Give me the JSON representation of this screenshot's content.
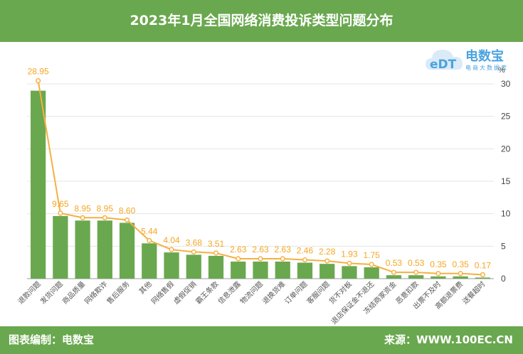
{
  "header": {
    "title": "2023年1月全国网络消费投诉类型问题分布"
  },
  "footer": {
    "left_label": "图表编制：电数宝",
    "right_label": "来源：WWW.100EC.CN"
  },
  "logo": {
    "name": "电数宝",
    "sub": "电商大数据库",
    "mark": "eDT"
  },
  "colors": {
    "brand_green": "#6aa84f",
    "bar": "#6aa84f",
    "line": "#f5b041",
    "label": "#f5a623",
    "logo_blue": "#4aa3df"
  },
  "chart_data": {
    "type": "bar",
    "unit": "%",
    "categories": [
      "退款问题",
      "发货问题",
      "商品质量",
      "网络欺诈",
      "售后服务",
      "其他",
      "网络售假",
      "虚假促销",
      "霸王条款",
      "信息泄露",
      "物流问题",
      "退换货难",
      "订单问题",
      "客服问题",
      "货不对板",
      "退店保证金不退还",
      "冻结商家资金",
      "恶意扣款",
      "出票不及时",
      "高额退票费",
      "送餐超时"
    ],
    "values": [
      28.95,
      9.65,
      8.95,
      8.95,
      8.6,
      5.44,
      4.04,
      3.68,
      3.51,
      2.63,
      2.63,
      2.63,
      2.46,
      2.28,
      1.93,
      1.75,
      0.53,
      0.53,
      0.35,
      0.35,
      0.17
    ],
    "data_labels": [
      "28.95",
      "9.65",
      "8.95",
      "8.95",
      "8.60",
      "5.44",
      "4.04",
      "3.68",
      "3.51",
      "2.63",
      "2.63",
      "2.63",
      "2.46",
      "2.28",
      "1.93",
      "1.75",
      "0.53",
      "0.53",
      "0.35",
      "0.35",
      "0.17"
    ],
    "y_ticks": [
      0,
      5,
      10,
      15,
      20,
      25,
      30
    ],
    "ylim": [
      0,
      30
    ],
    "y_axis_side": "right",
    "grid": true,
    "overlay_line": true
  }
}
